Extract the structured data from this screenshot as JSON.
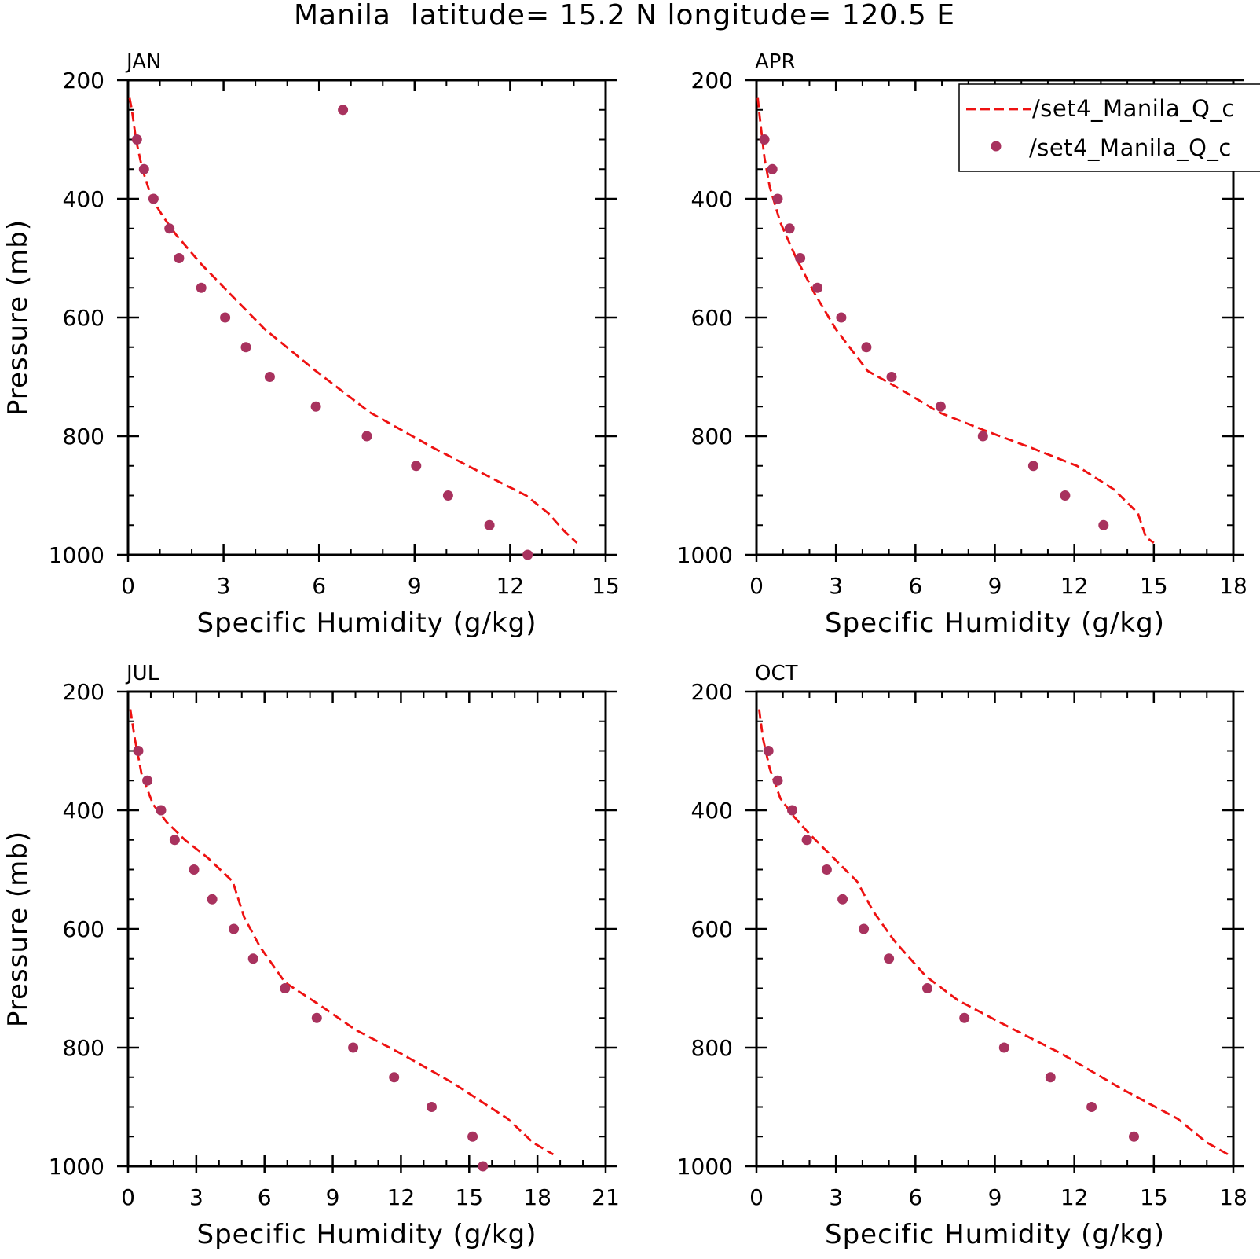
{
  "page": {
    "title": "Manila  latitude= 15.2 N longitude= 120.5 E"
  },
  "legend": {
    "model_label": "/set4_Manila_Q_c",
    "obs_label": "/set4_Manila_Q_c",
    "model_color": "#ee1111",
    "obs_color": "#a8325e"
  },
  "chart_data": [
    {
      "type": "line",
      "panel": "JAN",
      "xlabel": "Specific Humidity (g/kg)",
      "ylabel": "Pressure (mb)",
      "xlim": [
        0,
        15
      ],
      "ylim": [
        200,
        1000
      ],
      "y_inverted": true,
      "xticks": [
        "0",
        "3",
        "6",
        "9",
        "12",
        "15"
      ],
      "yticks": [
        "200",
        "400",
        "600",
        "800",
        "1000"
      ],
      "series": [
        {
          "style": "dashed-line",
          "x": [
            0.05,
            0.12,
            0.25,
            0.45,
            0.75,
            1.1,
            1.5,
            2.3,
            3.2,
            4.3,
            5.9,
            7.6,
            9.6,
            11.4,
            12.5,
            13.2,
            13.7,
            14.1
          ],
          "y": [
            230,
            250,
            300,
            350,
            400,
            430,
            460,
            510,
            560,
            620,
            690,
            760,
            820,
            870,
            900,
            930,
            960,
            980
          ]
        },
        {
          "style": "dots",
          "x": [
            6.75,
            0.28,
            0.5,
            0.8,
            1.3,
            1.6,
            2.3,
            3.05,
            3.7,
            4.45,
            5.9,
            7.5,
            9.05,
            10.05,
            11.35,
            12.55
          ],
          "y": [
            250,
            300,
            350,
            400,
            450,
            500,
            550,
            600,
            650,
            700,
            750,
            800,
            850,
            900,
            950,
            1000
          ]
        }
      ]
    },
    {
      "type": "line",
      "panel": "APR",
      "xlabel": "Specific Humidity (g/kg)",
      "ylabel": "",
      "xlim": [
        0,
        18
      ],
      "ylim": [
        200,
        1000
      ],
      "y_inverted": true,
      "xticks": [
        "0",
        "3",
        "6",
        "9",
        "12",
        "15",
        "18"
      ],
      "yticks": [
        "200",
        "400",
        "600",
        "800",
        "1000"
      ],
      "series": [
        {
          "style": "dashed-line",
          "x": [
            0.05,
            0.12,
            0.3,
            0.5,
            0.9,
            1.5,
            2.2,
            3.0,
            4.2,
            5.4,
            6.9,
            8.6,
            10.4,
            12.1,
            13.5,
            14.4,
            14.7,
            15.0
          ],
          "y": [
            230,
            260,
            330,
            380,
            440,
            500,
            560,
            620,
            690,
            720,
            760,
            790,
            820,
            850,
            890,
            930,
            970,
            980
          ]
        },
        {
          "style": "dots",
          "x": [
            0.3,
            0.6,
            0.8,
            1.25,
            1.65,
            2.3,
            3.2,
            4.15,
            5.1,
            6.95,
            8.55,
            10.45,
            11.65,
            13.1
          ],
          "y": [
            300,
            350,
            400,
            450,
            500,
            550,
            600,
            650,
            700,
            750,
            800,
            850,
            900,
            950
          ]
        }
      ]
    },
    {
      "type": "line",
      "panel": "JUL",
      "xlabel": "Specific Humidity (g/kg)",
      "ylabel": "Pressure (mb)",
      "xlim": [
        0,
        21
      ],
      "ylim": [
        200,
        1000
      ],
      "y_inverted": true,
      "xticks": [
        "0",
        "3",
        "6",
        "9",
        "12",
        "15",
        "18",
        "21"
      ],
      "yticks": [
        "200",
        "400",
        "600",
        "800",
        "1000"
      ],
      "series": [
        {
          "style": "dashed-line",
          "x": [
            0.1,
            0.3,
            0.6,
            1.1,
            1.7,
            2.5,
            3.5,
            4.6,
            5.1,
            5.8,
            6.9,
            8.5,
            10.0,
            12.0,
            14.3,
            16.7,
            17.8,
            18.7
          ],
          "y": [
            230,
            280,
            340,
            390,
            420,
            450,
            480,
            520,
            580,
            630,
            690,
            730,
            770,
            810,
            860,
            920,
            960,
            980
          ]
        },
        {
          "style": "dots",
          "x": [
            0.45,
            0.85,
            1.45,
            2.05,
            2.9,
            3.7,
            4.65,
            5.5,
            6.9,
            8.3,
            9.9,
            11.7,
            13.35,
            15.15,
            15.6
          ],
          "y": [
            300,
            350,
            400,
            450,
            500,
            550,
            600,
            650,
            700,
            750,
            800,
            850,
            900,
            950,
            1000
          ]
        }
      ]
    },
    {
      "type": "line",
      "panel": "OCT",
      "xlabel": "Specific Humidity (g/kg)",
      "ylabel": "",
      "xlim": [
        0,
        18
      ],
      "ylim": [
        200,
        1000
      ],
      "y_inverted": true,
      "xticks": [
        "0",
        "3",
        "6",
        "9",
        "12",
        "15",
        "18"
      ],
      "yticks": [
        "200",
        "400",
        "600",
        "800",
        "1000"
      ],
      "series": [
        {
          "style": "dashed-line",
          "x": [
            0.1,
            0.25,
            0.5,
            0.9,
            1.4,
            2.0,
            2.9,
            3.8,
            4.4,
            5.2,
            6.4,
            7.6,
            9.3,
            11.5,
            13.8,
            15.9,
            17.0,
            17.8
          ],
          "y": [
            230,
            280,
            330,
            380,
            410,
            440,
            480,
            520,
            570,
            620,
            680,
            720,
            760,
            810,
            870,
            920,
            960,
            980
          ]
        },
        {
          "style": "dots",
          "x": [
            0.45,
            0.8,
            1.35,
            1.9,
            2.65,
            3.25,
            4.05,
            5.0,
            6.45,
            7.85,
            9.35,
            11.1,
            12.65,
            14.25
          ],
          "y": [
            300,
            350,
            400,
            450,
            500,
            550,
            600,
            650,
            700,
            750,
            800,
            850,
            900,
            950
          ]
        }
      ]
    }
  ]
}
